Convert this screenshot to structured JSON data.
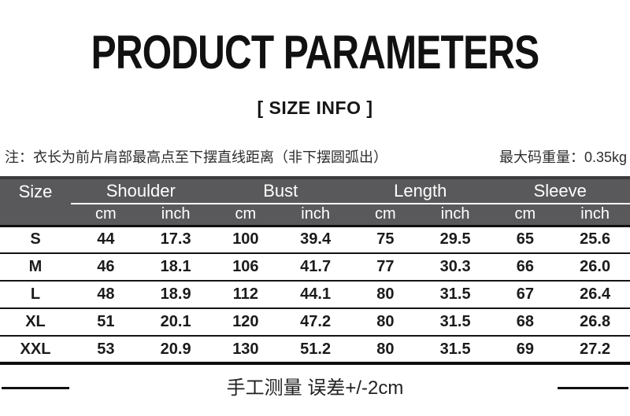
{
  "page": {
    "title": "PRODUCT PARAMETERS",
    "subtitle": "[ SIZE INFO ]"
  },
  "notes": {
    "left": "注：衣长为前片肩部最高点至下摆直线距离（非下摆圆弧出）",
    "right": "最大码重量：0.35kg"
  },
  "size_table": {
    "corner_label": "Size",
    "groups": [
      {
        "label": "Shoulder"
      },
      {
        "label": "Bust"
      },
      {
        "label": "Length"
      },
      {
        "label": "Sleeve"
      }
    ],
    "unit_labels": [
      "cm",
      "inch"
    ],
    "rows": [
      {
        "size": "S",
        "values": [
          "44",
          "17.3",
          "100",
          "39.4",
          "75",
          "29.5",
          "65",
          "25.6"
        ]
      },
      {
        "size": "M",
        "values": [
          "46",
          "18.1",
          "106",
          "41.7",
          "77",
          "30.3",
          "66",
          "26.0"
        ]
      },
      {
        "size": "L",
        "values": [
          "48",
          "18.9",
          "112",
          "44.1",
          "80",
          "31.5",
          "67",
          "26.4"
        ]
      },
      {
        "size": "XL",
        "values": [
          "51",
          "20.1",
          "120",
          "47.2",
          "80",
          "31.5",
          "68",
          "26.8"
        ]
      },
      {
        "size": "XXL",
        "values": [
          "53",
          "20.9",
          "130",
          "51.2",
          "80",
          "31.5",
          "69",
          "27.2"
        ]
      }
    ]
  },
  "footer": {
    "note": "手工测量 误差+/-2cm"
  },
  "colors": {
    "header_bg": "#59595b",
    "header_top_border": "#3b3b3c",
    "header_text": "#ffffff",
    "line": "#111111",
    "text": "#1b1b1b"
  }
}
